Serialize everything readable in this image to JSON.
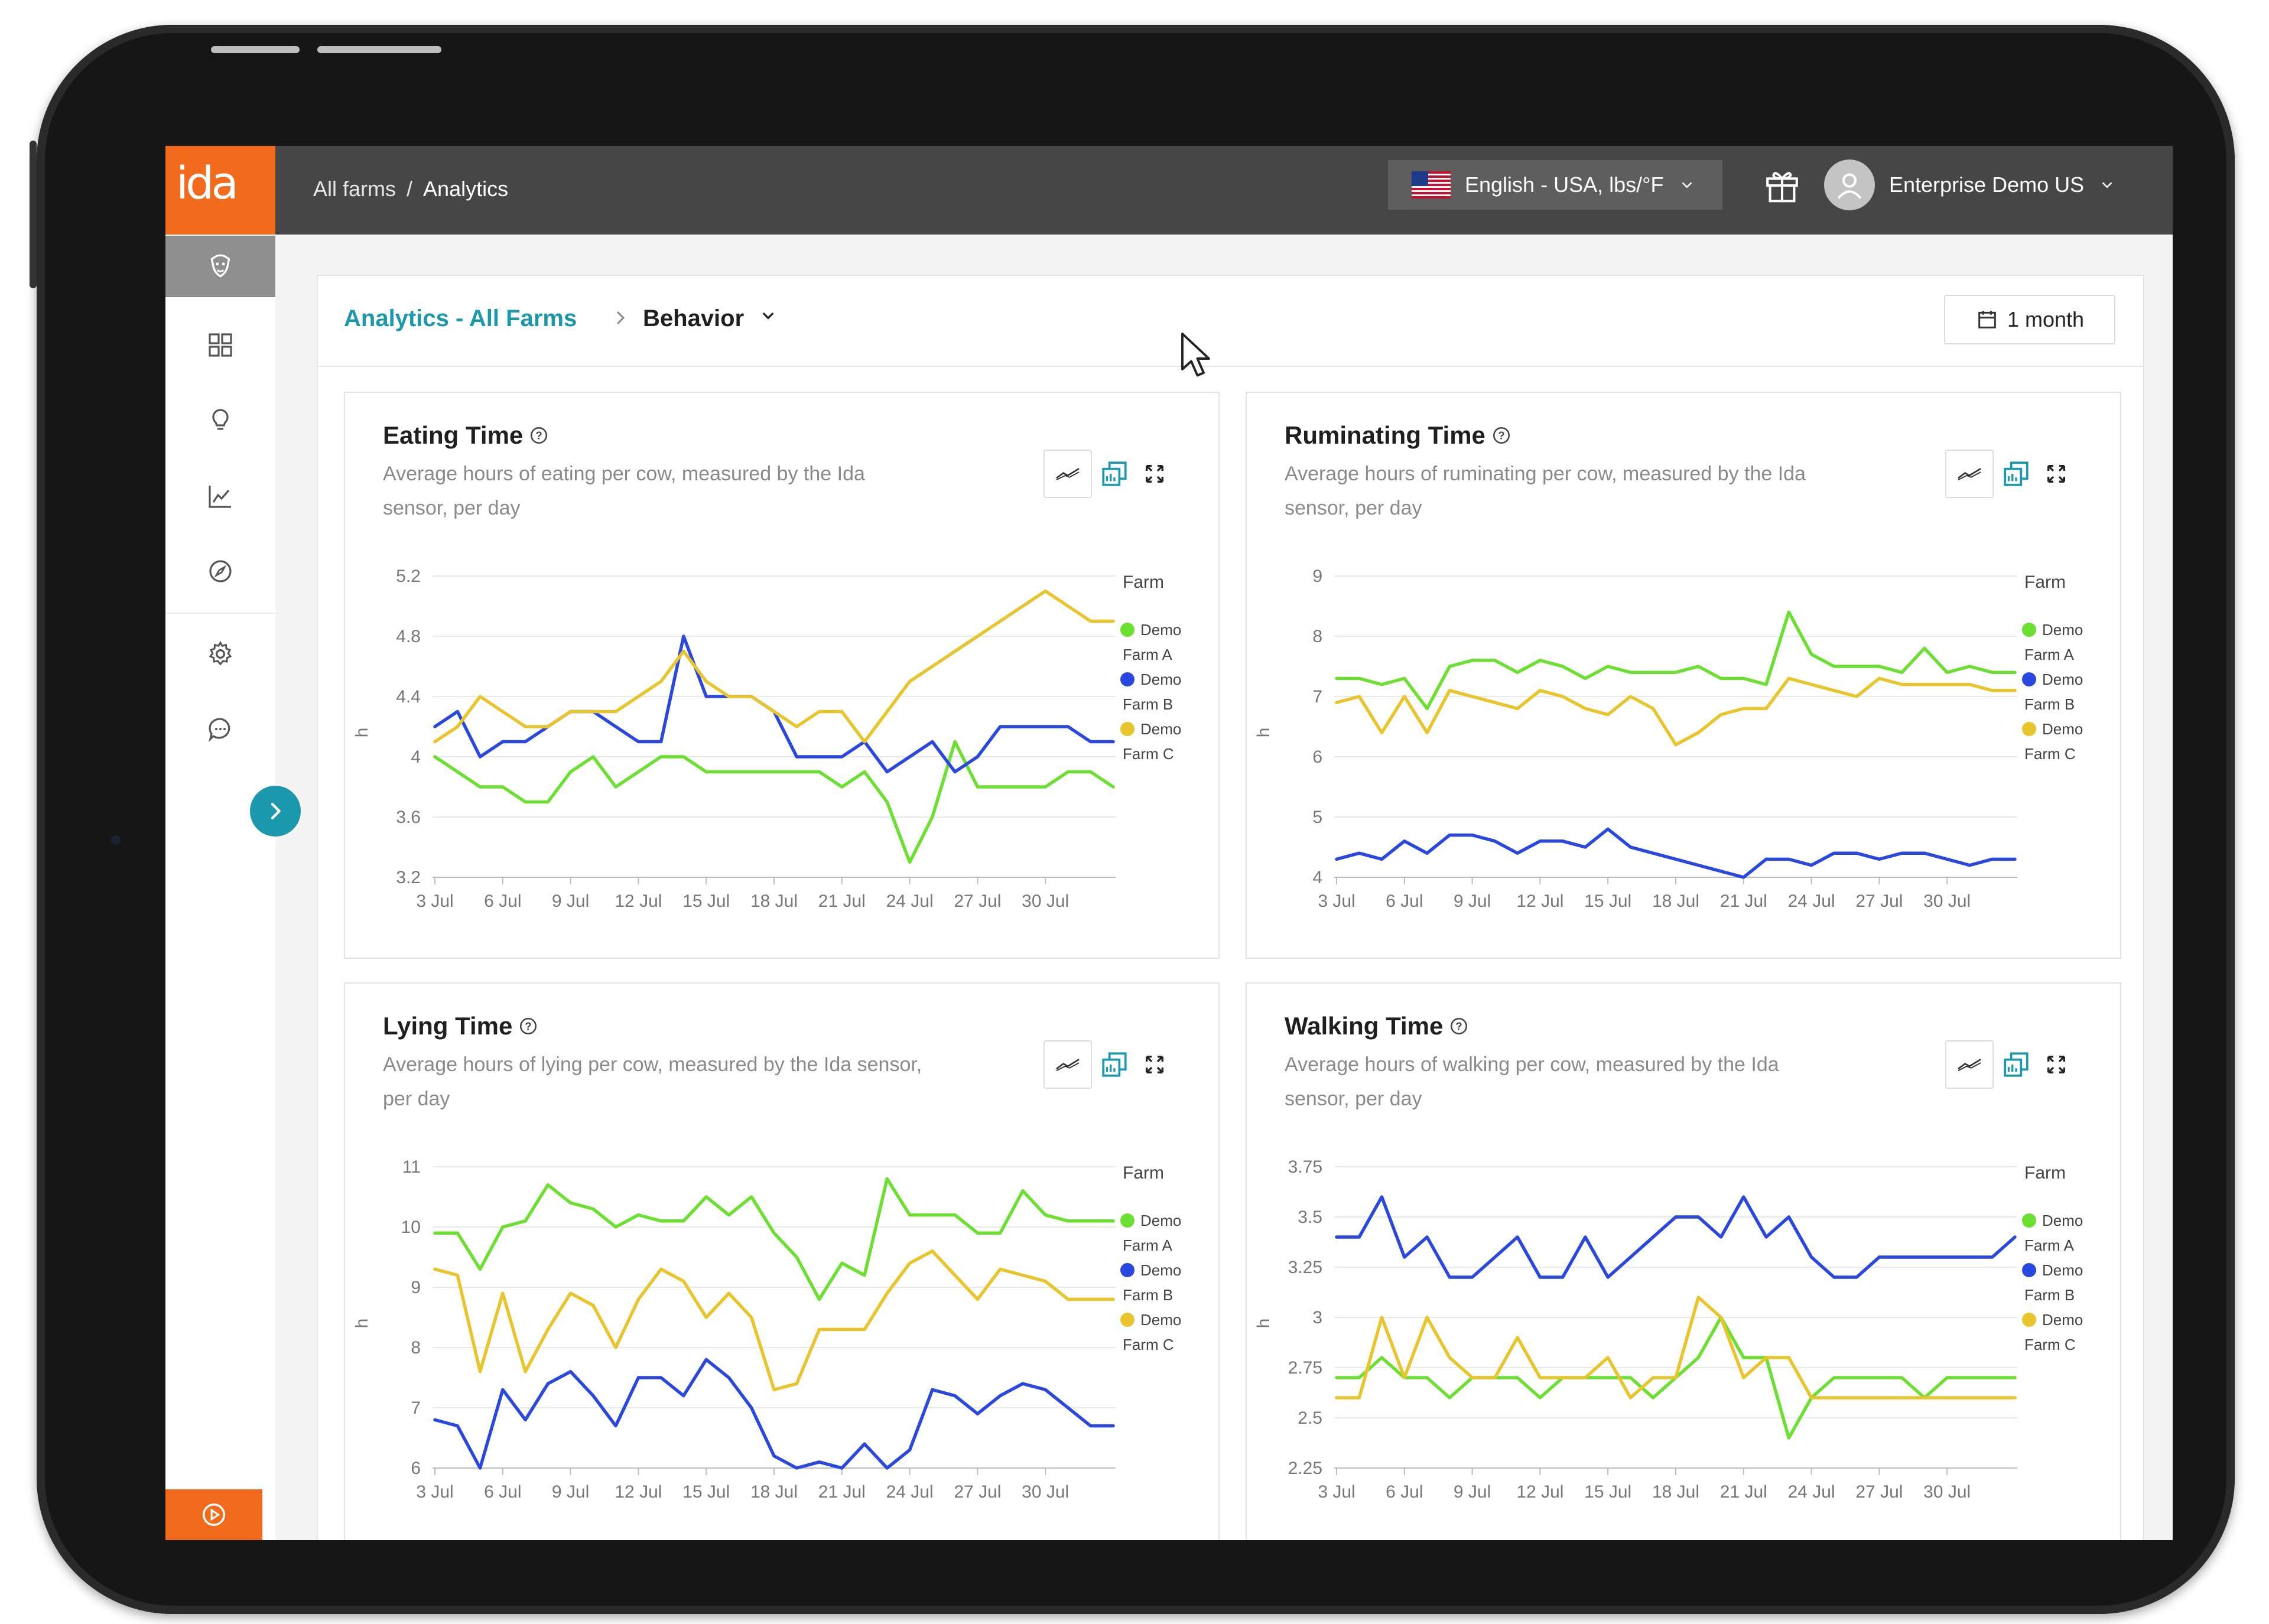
{
  "colors": {
    "orange": "#f26a1b",
    "teal": "#1c98ad",
    "green": "#6be030",
    "blue": "#2a48e0",
    "yellow": "#e8c52c"
  },
  "topbar": {
    "breadcrumb_all": "All farms",
    "breadcrumb_sep": "/",
    "breadcrumb_current": "Analytics",
    "language": "English - USA, lbs/°F",
    "user_name": "Enterprise Demo US"
  },
  "sidebar": {
    "logo": "ida",
    "items": [
      "herd-icon",
      "dashboard-icon",
      "insights-bulb-icon",
      "analytics-chart-icon",
      "explore-compass-icon",
      "settings-gear-icon",
      "chat-icon"
    ]
  },
  "panel": {
    "title": "Analytics - All Farms",
    "section": "Behavior",
    "period": "1 month"
  },
  "chart_data": [
    {
      "type": "line",
      "title": "Eating Time",
      "subtitle_line1": "Average hours of eating per cow, measured by the Ida",
      "subtitle_line2": "sensor, per day",
      "ylabel": "h",
      "ylim": [
        3.2,
        5.2
      ],
      "yticks": [
        "5.2",
        "4.8",
        "4.4",
        "4",
        "3.6",
        "3.2"
      ],
      "ytick_values": [
        5.2,
        4.8,
        4.4,
        4.0,
        3.6,
        3.2
      ],
      "xticks": [
        "3 Jul",
        "6 Jul",
        "9 Jul",
        "12 Jul",
        "15 Jul",
        "18 Jul",
        "21 Jul",
        "24 Jul",
        "27 Jul",
        "30 Jul"
      ],
      "legend_title": "Farm",
      "series": [
        {
          "name": "Demo Farm A",
          "line1": "Demo",
          "line2": "Farm A",
          "color": "#6be030",
          "values": [
            4.0,
            3.9,
            3.8,
            3.8,
            3.7,
            3.7,
            3.9,
            4.0,
            3.8,
            3.9,
            4.0,
            4.0,
            3.9,
            3.9,
            3.9,
            3.9,
            3.9,
            3.9,
            3.8,
            3.9,
            3.7,
            3.3,
            3.6,
            4.1,
            3.8,
            3.8,
            3.8,
            3.8,
            3.9,
            3.9,
            3.8
          ]
        },
        {
          "name": "Demo Farm B",
          "line1": "Demo",
          "line2": "Farm B",
          "color": "#2a48e0",
          "values": [
            4.2,
            4.3,
            4.0,
            4.1,
            4.1,
            4.2,
            4.3,
            4.3,
            4.2,
            4.1,
            4.1,
            4.8,
            4.4,
            4.4,
            4.4,
            4.3,
            4.0,
            4.0,
            4.0,
            4.1,
            3.9,
            4.0,
            4.1,
            3.9,
            4.0,
            4.2,
            4.2,
            4.2,
            4.2,
            4.1,
            4.1
          ]
        },
        {
          "name": "Demo Farm C",
          "line1": "Demo",
          "line2": "Farm C",
          "color": "#e8c52c",
          "values": [
            4.1,
            4.2,
            4.4,
            4.3,
            4.2,
            4.2,
            4.3,
            4.3,
            4.3,
            4.4,
            4.5,
            4.7,
            4.5,
            4.4,
            4.4,
            4.3,
            4.2,
            4.3,
            4.3,
            4.1,
            4.3,
            4.5,
            4.6,
            4.7,
            4.8,
            4.9,
            5.0,
            5.1,
            5.0,
            4.9,
            4.9
          ]
        }
      ]
    },
    {
      "type": "line",
      "title": "Ruminating Time",
      "subtitle_line1": "Average hours of ruminating per cow, measured by the Ida",
      "subtitle_line2": "sensor, per day",
      "ylabel": "h",
      "ylim": [
        4,
        9
      ],
      "yticks": [
        "9",
        "8",
        "7",
        "6",
        "5",
        "4"
      ],
      "ytick_values": [
        9,
        8,
        7,
        6,
        5,
        4
      ],
      "xticks": [
        "3 Jul",
        "6 Jul",
        "9 Jul",
        "12 Jul",
        "15 Jul",
        "18 Jul",
        "21 Jul",
        "24 Jul",
        "27 Jul",
        "30 Jul"
      ],
      "legend_title": "Farm",
      "series": [
        {
          "name": "Demo Farm A",
          "line1": "Demo",
          "line2": "Farm A",
          "color": "#6be030",
          "values": [
            7.3,
            7.3,
            7.2,
            7.3,
            6.8,
            7.5,
            7.6,
            7.6,
            7.4,
            7.6,
            7.5,
            7.3,
            7.5,
            7.4,
            7.4,
            7.4,
            7.5,
            7.3,
            7.3,
            7.2,
            8.4,
            7.7,
            7.5,
            7.5,
            7.5,
            7.4,
            7.8,
            7.4,
            7.5,
            7.4,
            7.4
          ]
        },
        {
          "name": "Demo Farm B",
          "line1": "Demo",
          "line2": "Farm B",
          "color": "#2a48e0",
          "values": [
            4.3,
            4.4,
            4.3,
            4.6,
            4.4,
            4.7,
            4.7,
            4.6,
            4.4,
            4.6,
            4.6,
            4.5,
            4.8,
            4.5,
            4.4,
            4.3,
            4.2,
            4.1,
            4.0,
            4.3,
            4.3,
            4.2,
            4.4,
            4.4,
            4.3,
            4.4,
            4.4,
            4.3,
            4.2,
            4.3,
            4.3
          ]
        },
        {
          "name": "Demo Farm C",
          "line1": "Demo",
          "line2": "Farm C",
          "color": "#e8c52c",
          "values": [
            6.9,
            7.0,
            6.4,
            7.0,
            6.4,
            7.1,
            7.0,
            6.9,
            6.8,
            7.1,
            7.0,
            6.8,
            6.7,
            7.0,
            6.8,
            6.2,
            6.4,
            6.7,
            6.8,
            6.8,
            7.3,
            7.2,
            7.1,
            7.0,
            7.3,
            7.2,
            7.2,
            7.2,
            7.2,
            7.1,
            7.1
          ]
        }
      ]
    },
    {
      "type": "line",
      "title": "Lying Time",
      "subtitle_line1": "Average hours of lying per cow, measured by the Ida sensor,",
      "subtitle_line2": "per day",
      "ylabel": "h",
      "ylim": [
        6,
        11
      ],
      "yticks": [
        "11",
        "10",
        "9",
        "8",
        "7",
        "6"
      ],
      "ytick_values": [
        11,
        10,
        9,
        8,
        7,
        6
      ],
      "xticks": [
        "3 Jul",
        "6 Jul",
        "9 Jul",
        "12 Jul",
        "15 Jul",
        "18 Jul",
        "21 Jul",
        "24 Jul",
        "27 Jul",
        "30 Jul"
      ],
      "legend_title": "Farm",
      "series": [
        {
          "name": "Demo Farm A",
          "line1": "Demo",
          "line2": "Farm A",
          "color": "#6be030",
          "values": [
            9.9,
            9.9,
            9.3,
            10.0,
            10.1,
            10.7,
            10.4,
            10.3,
            10.0,
            10.2,
            10.1,
            10.1,
            10.5,
            10.2,
            10.5,
            9.9,
            9.5,
            8.8,
            9.4,
            9.2,
            10.8,
            10.2,
            10.2,
            10.2,
            9.9,
            9.9,
            10.6,
            10.2,
            10.1,
            10.1,
            10.1
          ]
        },
        {
          "name": "Demo Farm B",
          "line1": "Demo",
          "line2": "Farm B",
          "color": "#2a48e0",
          "values": [
            6.8,
            6.7,
            6.0,
            7.3,
            6.8,
            7.4,
            7.6,
            7.2,
            6.7,
            7.5,
            7.5,
            7.2,
            7.8,
            7.5,
            7.0,
            6.2,
            6.0,
            6.1,
            6.0,
            6.4,
            6.0,
            6.3,
            7.3,
            7.2,
            6.9,
            7.2,
            7.4,
            7.3,
            7.0,
            6.7,
            6.7
          ]
        },
        {
          "name": "Demo Farm C",
          "line1": "Demo",
          "line2": "Farm C",
          "color": "#e8c52c",
          "values": [
            9.3,
            9.2,
            7.6,
            8.9,
            7.6,
            8.3,
            8.9,
            8.7,
            8.0,
            8.8,
            9.3,
            9.1,
            8.5,
            8.9,
            8.5,
            7.3,
            7.4,
            8.3,
            8.3,
            8.3,
            8.9,
            9.4,
            9.6,
            9.2,
            8.8,
            9.3,
            9.2,
            9.1,
            8.8,
            8.8,
            8.8
          ]
        }
      ]
    },
    {
      "type": "line",
      "title": "Walking Time",
      "subtitle_line1": "Average hours of walking per cow, measured by the Ida",
      "subtitle_line2": "sensor, per day",
      "ylabel": "h",
      "ylim": [
        2.25,
        3.75
      ],
      "yticks": [
        "3.75",
        "3.5",
        "3.25",
        "3",
        "2.75",
        "2.5",
        "2.25"
      ],
      "ytick_values": [
        3.75,
        3.5,
        3.25,
        3.0,
        2.75,
        2.5,
        2.25
      ],
      "xticks": [
        "3 Jul",
        "6 Jul",
        "9 Jul",
        "12 Jul",
        "15 Jul",
        "18 Jul",
        "21 Jul",
        "24 Jul",
        "27 Jul",
        "30 Jul"
      ],
      "legend_title": "Farm",
      "series": [
        {
          "name": "Demo Farm A",
          "line1": "Demo",
          "line2": "Farm A",
          "color": "#6be030",
          "values": [
            2.7,
            2.7,
            2.8,
            2.7,
            2.7,
            2.6,
            2.7,
            2.7,
            2.7,
            2.6,
            2.7,
            2.7,
            2.7,
            2.7,
            2.6,
            2.7,
            2.8,
            3.0,
            2.8,
            2.8,
            2.4,
            2.6,
            2.7,
            2.7,
            2.7,
            2.7,
            2.6,
            2.7,
            2.7,
            2.7,
            2.7
          ]
        },
        {
          "name": "Demo Farm B",
          "line1": "Demo",
          "line2": "Farm B",
          "color": "#2a48e0",
          "values": [
            3.4,
            3.4,
            3.6,
            3.3,
            3.4,
            3.2,
            3.2,
            3.3,
            3.4,
            3.2,
            3.2,
            3.4,
            3.2,
            3.3,
            3.4,
            3.5,
            3.5,
            3.4,
            3.6,
            3.4,
            3.5,
            3.3,
            3.2,
            3.2,
            3.3,
            3.3,
            3.3,
            3.3,
            3.3,
            3.3,
            3.4
          ]
        },
        {
          "name": "Demo Farm C",
          "line1": "Demo",
          "line2": "Farm C",
          "color": "#e8c52c",
          "values": [
            2.6,
            2.6,
            3.0,
            2.7,
            3.0,
            2.8,
            2.7,
            2.7,
            2.9,
            2.7,
            2.7,
            2.7,
            2.8,
            2.6,
            2.7,
            2.7,
            3.1,
            3.0,
            2.7,
            2.8,
            2.8,
            2.6,
            2.6,
            2.6,
            2.6,
            2.6,
            2.6,
            2.6,
            2.6,
            2.6,
            2.6
          ]
        }
      ]
    }
  ]
}
